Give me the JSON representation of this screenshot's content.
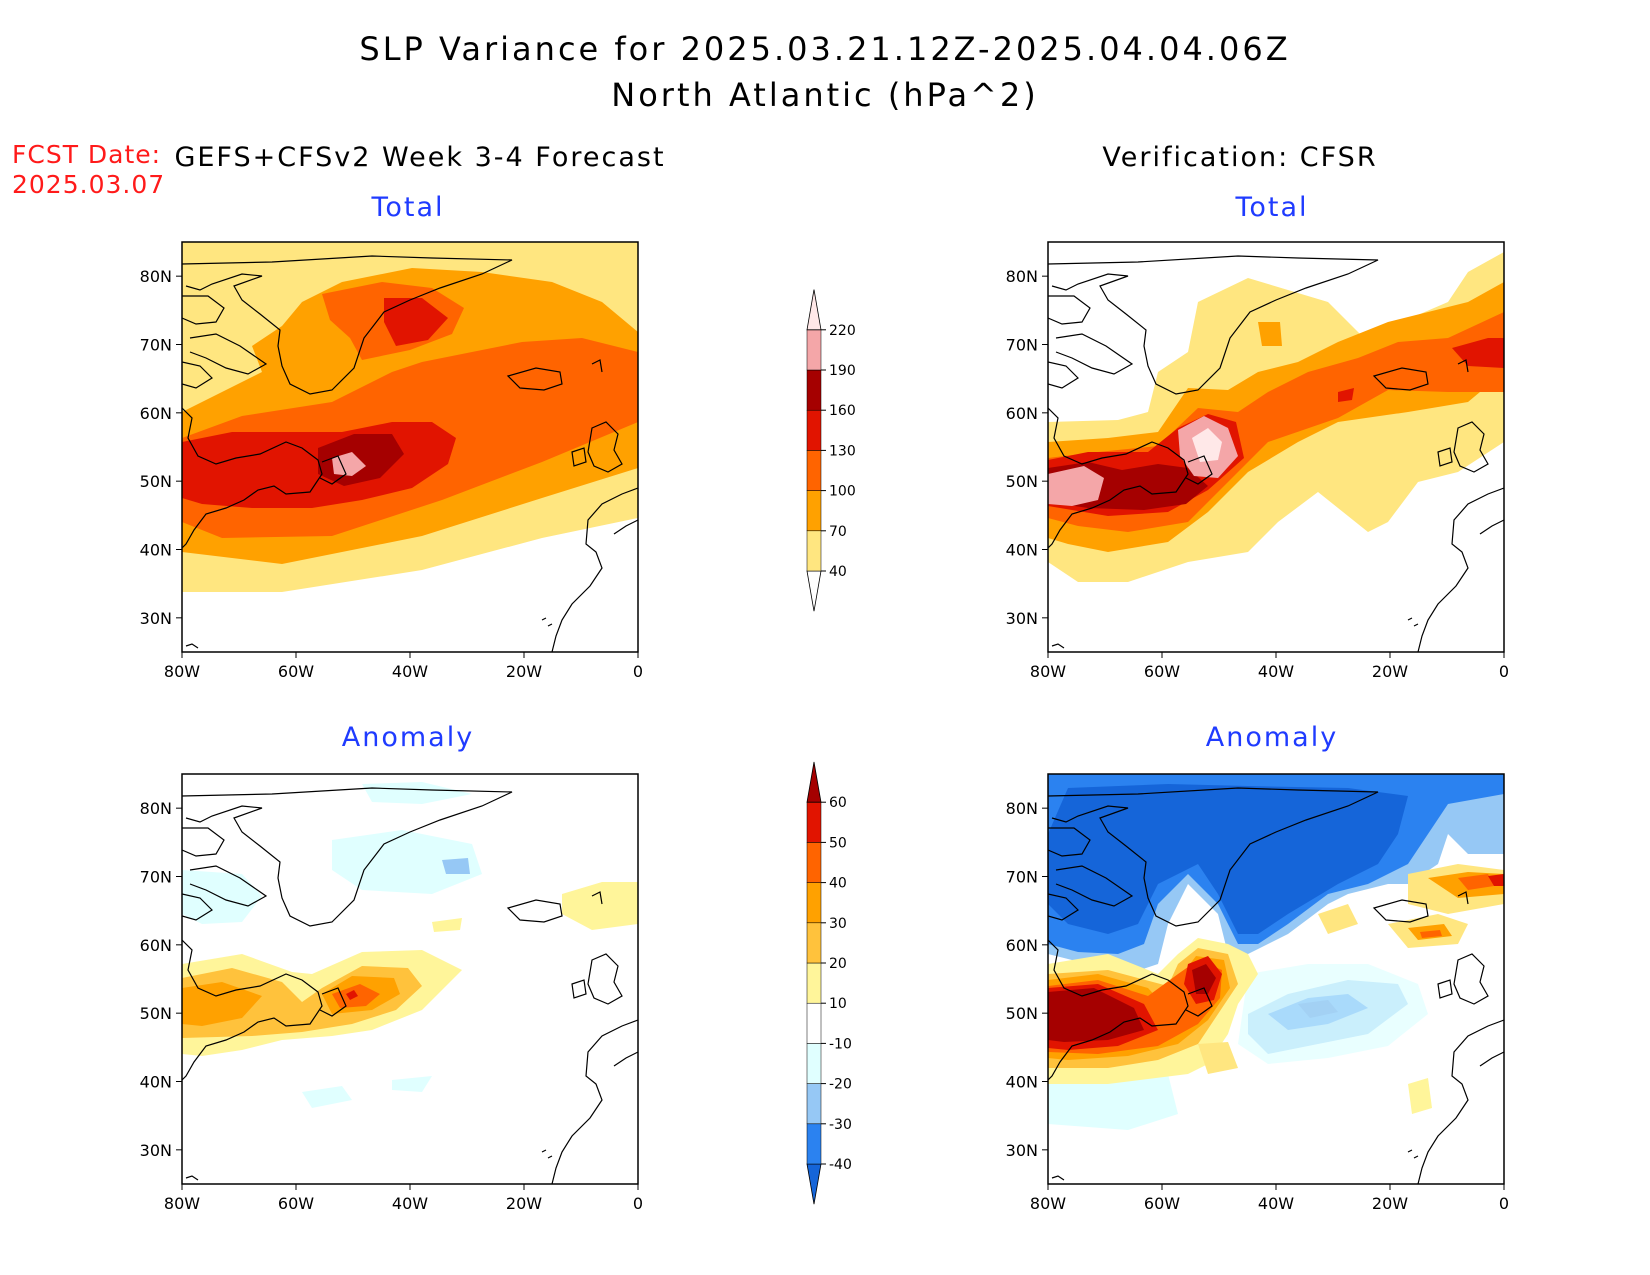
{
  "figure": {
    "title_line1": "SLP Variance for 2025.03.21.12Z-2025.04.04.06Z",
    "title_line2": "North Atlantic (hPa^2)",
    "fcst_label": "FCST Date:",
    "fcst_date": "2025.03.07",
    "left_column_title": "GEFS+CFSv2 Week 3-4 Forecast",
    "right_column_title": "Verification: CFSR"
  },
  "panels": [
    {
      "id": "fcst-total",
      "subtitle": "Total",
      "colorbar": "total"
    },
    {
      "id": "verif-total",
      "subtitle": "Total",
      "colorbar": "total"
    },
    {
      "id": "fcst-anomaly",
      "subtitle": "Anomaly",
      "colorbar": "anomaly"
    },
    {
      "id": "verif-anomaly",
      "subtitle": "Anomaly",
      "colorbar": "anomaly"
    }
  ],
  "axes": {
    "lon_ticks": [
      "80W",
      "60W",
      "40W",
      "20W",
      "0"
    ],
    "lat_ticks": [
      "80N",
      "70N",
      "60N",
      "50N",
      "40N",
      "30N"
    ],
    "lon_range": [
      -80,
      0
    ],
    "lat_range": [
      25,
      85
    ]
  },
  "colorbars": {
    "total": {
      "labels": [
        "40",
        "70",
        "100",
        "130",
        "160",
        "190",
        "220"
      ],
      "colors": [
        "#ffffff",
        "#ffe680",
        "#ffa100",
        "#ff6400",
        "#e11400",
        "#a50000",
        "#f4a6a8",
        "#ffe8e8"
      ]
    },
    "anomaly": {
      "labels": [
        "-40",
        "-30",
        "-20",
        "-10",
        "10",
        "20",
        "30",
        "40",
        "50",
        "60"
      ],
      "colors": [
        "#1565d9",
        "#2b82f0",
        "#96c8f5",
        "#e0ffff",
        "#ffffff",
        "#fff59a",
        "#ffc23c",
        "#ffa100",
        "#ff6400",
        "#e11400",
        "#a50000"
      ]
    }
  }
}
